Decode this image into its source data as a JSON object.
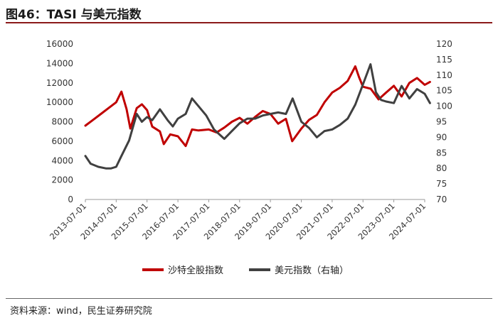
{
  "header": {
    "title": "图46：TASI 与美元指数"
  },
  "footer": {
    "source": "资料来源：wind，民生证券研究院"
  },
  "colors": {
    "tasi": "#c00000",
    "dxy": "#404040",
    "rule": "#8b1a1a"
  },
  "chart_data": {
    "type": "line",
    "title": "",
    "x": [
      "2013-07-01",
      "2014-07-01",
      "2015-07-01",
      "2016-07-01",
      "2017-07-01",
      "2018-07-01",
      "2019-07-01",
      "2020-07-01",
      "2021-07-01",
      "2022-07-01",
      "2023-07-01",
      "2024-07-01"
    ],
    "xlabel": "",
    "left_axis": {
      "ylim": [
        0,
        16000
      ],
      "ticks": [
        "0",
        "2000",
        "4000",
        "6000",
        "8000",
        "10000",
        "12000",
        "14000",
        "16000"
      ]
    },
    "right_axis": {
      "ylim": [
        70,
        120
      ],
      "ticks": [
        "70",
        "75",
        "80",
        "85",
        "90",
        "95",
        "100",
        "105",
        "110",
        "115",
        "120"
      ]
    },
    "grid": false,
    "legend_position": "bottom",
    "series": [
      {
        "name": "沙特全股指数",
        "axis": "left",
        "points": [
          [
            "2013-07-01",
            7600
          ],
          [
            "2013-10-01",
            8200
          ],
          [
            "2014-01-01",
            8800
          ],
          [
            "2014-04-01",
            9400
          ],
          [
            "2014-07-01",
            10000
          ],
          [
            "2014-09-01",
            11100
          ],
          [
            "2014-11-01",
            9300
          ],
          [
            "2014-12-15",
            7300
          ],
          [
            "2015-03-01",
            9400
          ],
          [
            "2015-05-01",
            9800
          ],
          [
            "2015-07-01",
            9200
          ],
          [
            "2015-09-01",
            7500
          ],
          [
            "2015-12-01",
            7000
          ],
          [
            "2016-01-15",
            5700
          ],
          [
            "2016-04-01",
            6700
          ],
          [
            "2016-07-01",
            6500
          ],
          [
            "2016-10-01",
            5500
          ],
          [
            "2016-12-15",
            7200
          ],
          [
            "2017-03-01",
            7100
          ],
          [
            "2017-07-01",
            7200
          ],
          [
            "2017-10-01",
            6900
          ],
          [
            "2018-01-01",
            7400
          ],
          [
            "2018-04-01",
            8000
          ],
          [
            "2018-07-01",
            8400
          ],
          [
            "2018-10-01",
            7800
          ],
          [
            "2019-01-01",
            8500
          ],
          [
            "2019-04-01",
            9100
          ],
          [
            "2019-07-01",
            8800
          ],
          [
            "2019-10-01",
            7800
          ],
          [
            "2020-01-01",
            8300
          ],
          [
            "2020-03-15",
            6000
          ],
          [
            "2020-07-01",
            7300
          ],
          [
            "2020-10-01",
            8200
          ],
          [
            "2021-01-01",
            8700
          ],
          [
            "2021-04-01",
            10000
          ],
          [
            "2021-07-01",
            11000
          ],
          [
            "2021-10-01",
            11500
          ],
          [
            "2022-01-01",
            12200
          ],
          [
            "2022-04-01",
            13700
          ],
          [
            "2022-05-15",
            12600
          ],
          [
            "2022-07-01",
            11600
          ],
          [
            "2022-10-01",
            11400
          ],
          [
            "2023-01-01",
            10300
          ],
          [
            "2023-04-01",
            11000
          ],
          [
            "2023-07-01",
            11700
          ],
          [
            "2023-10-01",
            10600
          ],
          [
            "2024-01-01",
            12000
          ],
          [
            "2024-04-01",
            12500
          ],
          [
            "2024-07-01",
            11800
          ],
          [
            "2024-09-01",
            12100
          ]
        ]
      },
      {
        "name": "美元指数（右轴）",
        "axis": "right",
        "points": [
          [
            "2013-07-01",
            84
          ],
          [
            "2013-09-01",
            81.5
          ],
          [
            "2013-12-01",
            80.5
          ],
          [
            "2014-03-01",
            80
          ],
          [
            "2014-05-01",
            80
          ],
          [
            "2014-07-01",
            80.5
          ],
          [
            "2014-09-01",
            84
          ],
          [
            "2014-12-01",
            89
          ],
          [
            "2015-03-01",
            97.5
          ],
          [
            "2015-05-01",
            95
          ],
          [
            "2015-07-01",
            96.5
          ],
          [
            "2015-09-01",
            95.5
          ],
          [
            "2015-12-01",
            99
          ],
          [
            "2016-03-01",
            95.5
          ],
          [
            "2016-05-01",
            93.5
          ],
          [
            "2016-07-01",
            96
          ],
          [
            "2016-10-01",
            97.5
          ],
          [
            "2016-12-15",
            102.5
          ],
          [
            "2017-03-01",
            100
          ],
          [
            "2017-06-01",
            97
          ],
          [
            "2017-09-01",
            92.5
          ],
          [
            "2018-01-01",
            89.5
          ],
          [
            "2018-04-01",
            92
          ],
          [
            "2018-07-01",
            94.5
          ],
          [
            "2018-10-01",
            96
          ],
          [
            "2019-01-01",
            96
          ],
          [
            "2019-04-01",
            97
          ],
          [
            "2019-07-01",
            97.5
          ],
          [
            "2019-10-01",
            98
          ],
          [
            "2020-01-01",
            97.5
          ],
          [
            "2020-03-20",
            102.5
          ],
          [
            "2020-07-01",
            95
          ],
          [
            "2020-10-01",
            93
          ],
          [
            "2021-01-01",
            90
          ],
          [
            "2021-04-01",
            92
          ],
          [
            "2021-07-01",
            92.5
          ],
          [
            "2021-10-01",
            94
          ],
          [
            "2022-01-01",
            96
          ],
          [
            "2022-04-01",
            100.5
          ],
          [
            "2022-07-01",
            107
          ],
          [
            "2022-09-28",
            113.5
          ],
          [
            "2022-12-01",
            104.5
          ],
          [
            "2023-02-01",
            102
          ],
          [
            "2023-04-01",
            101.5
          ],
          [
            "2023-07-01",
            101
          ],
          [
            "2023-10-01",
            106.5
          ],
          [
            "2024-01-01",
            102.5
          ],
          [
            "2024-04-01",
            105.5
          ],
          [
            "2024-07-01",
            104
          ],
          [
            "2024-09-01",
            101
          ]
        ]
      }
    ]
  }
}
